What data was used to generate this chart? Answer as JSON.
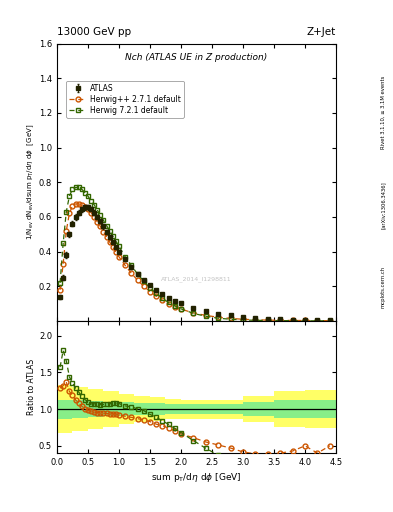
{
  "title_left": "13000 GeV pp",
  "title_right": "Z+Jet",
  "plot_title": "Nch (ATLAS UE in Z production)",
  "xlabel": "sum p_{T}/dη dφ [GeV]",
  "ylabel_main": "1/N_{ev} dN_{ev}/dsum p_{T}/dη dφ  [GeV]",
  "ylabel_ratio": "Ratio to ATLAS",
  "right_label1": "Rivet 3.1.10, ≥ 3.1M events",
  "right_label2": "[arXiv:1306.3436]",
  "right_label3": "mcplots.cern.ch",
  "watermark": "ATLAS_2014_I1298811",
  "xlim": [
    0,
    4.5
  ],
  "ylim_main": [
    0.0,
    1.6
  ],
  "ylim_ratio": [
    0.4,
    2.2
  ],
  "yticks_main": [
    0.2,
    0.4,
    0.6,
    0.8,
    1.0,
    1.2,
    1.4,
    1.6
  ],
  "yticks_ratio": [
    0.5,
    1.0,
    1.5,
    2.0
  ],
  "atlas_x": [
    0.05,
    0.1,
    0.15,
    0.2,
    0.25,
    0.3,
    0.35,
    0.4,
    0.45,
    0.5,
    0.55,
    0.6,
    0.65,
    0.7,
    0.75,
    0.8,
    0.85,
    0.9,
    0.95,
    1.0,
    1.1,
    1.2,
    1.3,
    1.4,
    1.5,
    1.6,
    1.7,
    1.8,
    1.9,
    2.0,
    2.2,
    2.4,
    2.6,
    2.8,
    3.0,
    3.2,
    3.4,
    3.6,
    3.8,
    4.0,
    4.2,
    4.4
  ],
  "atlas_y": [
    0.14,
    0.25,
    0.38,
    0.5,
    0.56,
    0.6,
    0.625,
    0.645,
    0.655,
    0.655,
    0.645,
    0.625,
    0.6,
    0.575,
    0.545,
    0.515,
    0.485,
    0.455,
    0.425,
    0.4,
    0.355,
    0.31,
    0.27,
    0.235,
    0.205,
    0.18,
    0.155,
    0.135,
    0.118,
    0.103,
    0.077,
    0.058,
    0.043,
    0.032,
    0.024,
    0.018,
    0.013,
    0.01,
    0.007,
    0.006,
    0.005,
    0.004
  ],
  "atlas_yerr": [
    0.012,
    0.013,
    0.015,
    0.015,
    0.015,
    0.015,
    0.014,
    0.014,
    0.013,
    0.013,
    0.013,
    0.013,
    0.012,
    0.012,
    0.012,
    0.011,
    0.011,
    0.01,
    0.01,
    0.01,
    0.009,
    0.008,
    0.007,
    0.007,
    0.006,
    0.005,
    0.005,
    0.004,
    0.004,
    0.004,
    0.003,
    0.002,
    0.002,
    0.002,
    0.001,
    0.001,
    0.001,
    0.001,
    0.001,
    0.001,
    0.001,
    0.001
  ],
  "herwig_pp_x": [
    0.05,
    0.1,
    0.15,
    0.2,
    0.25,
    0.3,
    0.35,
    0.4,
    0.45,
    0.5,
    0.55,
    0.6,
    0.65,
    0.7,
    0.75,
    0.8,
    0.85,
    0.9,
    0.95,
    1.0,
    1.1,
    1.2,
    1.3,
    1.4,
    1.5,
    1.6,
    1.7,
    1.8,
    1.9,
    2.0,
    2.2,
    2.4,
    2.6,
    2.8,
    3.0,
    3.2,
    3.4,
    3.6,
    3.8,
    4.0,
    4.2,
    4.4
  ],
  "herwig_pp_y": [
    0.18,
    0.33,
    0.52,
    0.62,
    0.665,
    0.675,
    0.675,
    0.67,
    0.66,
    0.645,
    0.625,
    0.6,
    0.572,
    0.545,
    0.515,
    0.485,
    0.455,
    0.425,
    0.397,
    0.37,
    0.32,
    0.275,
    0.235,
    0.2,
    0.17,
    0.143,
    0.12,
    0.1,
    0.083,
    0.068,
    0.047,
    0.032,
    0.022,
    0.015,
    0.01,
    0.007,
    0.005,
    0.004,
    0.003,
    0.003,
    0.002,
    0.002
  ],
  "herwig72_x": [
    0.05,
    0.1,
    0.15,
    0.2,
    0.25,
    0.3,
    0.35,
    0.4,
    0.45,
    0.5,
    0.55,
    0.6,
    0.65,
    0.7,
    0.75,
    0.8,
    0.85,
    0.9,
    0.95,
    1.0,
    1.1,
    1.2,
    1.3,
    1.4,
    1.5,
    1.6,
    1.7,
    1.8,
    1.9,
    2.0,
    2.2,
    2.4,
    2.6,
    2.8,
    3.0,
    3.2,
    3.4,
    3.6,
    3.8,
    4.0,
    4.2,
    4.4
  ],
  "herwig72_y": [
    0.22,
    0.45,
    0.63,
    0.72,
    0.76,
    0.77,
    0.77,
    0.76,
    0.74,
    0.72,
    0.69,
    0.67,
    0.64,
    0.61,
    0.58,
    0.55,
    0.52,
    0.49,
    0.46,
    0.43,
    0.37,
    0.32,
    0.27,
    0.23,
    0.19,
    0.16,
    0.13,
    0.107,
    0.087,
    0.07,
    0.044,
    0.027,
    0.016,
    0.01,
    0.006,
    0.004,
    0.003,
    0.002,
    0.002,
    0.001,
    0.001,
    0.001
  ],
  "atlas_color": "#222200",
  "herwig_pp_color": "#cc5500",
  "herwig72_color": "#336600",
  "band_yellow": "#ffff66",
  "band_green": "#88ee88",
  "ratio_band_edges": [
    0.0,
    0.25,
    0.5,
    0.75,
    1.0,
    1.25,
    1.5,
    1.75,
    2.0,
    2.5,
    3.0,
    3.5,
    4.0,
    4.5
  ],
  "ratio_band_green_lo": [
    0.87,
    0.88,
    0.89,
    0.9,
    0.91,
    0.92,
    0.92,
    0.93,
    0.93,
    0.93,
    0.9,
    0.88,
    0.88,
    0.88
  ],
  "ratio_band_green_hi": [
    1.13,
    1.12,
    1.11,
    1.1,
    1.09,
    1.08,
    1.08,
    1.07,
    1.07,
    1.07,
    1.1,
    1.12,
    1.12,
    1.12
  ],
  "ratio_band_yellow_lo": [
    0.67,
    0.7,
    0.73,
    0.76,
    0.79,
    0.82,
    0.84,
    0.86,
    0.87,
    0.87,
    0.82,
    0.76,
    0.74,
    0.74
  ],
  "ratio_band_yellow_hi": [
    1.33,
    1.3,
    1.27,
    1.24,
    1.21,
    1.18,
    1.16,
    1.14,
    1.13,
    1.13,
    1.18,
    1.24,
    1.26,
    1.26
  ]
}
